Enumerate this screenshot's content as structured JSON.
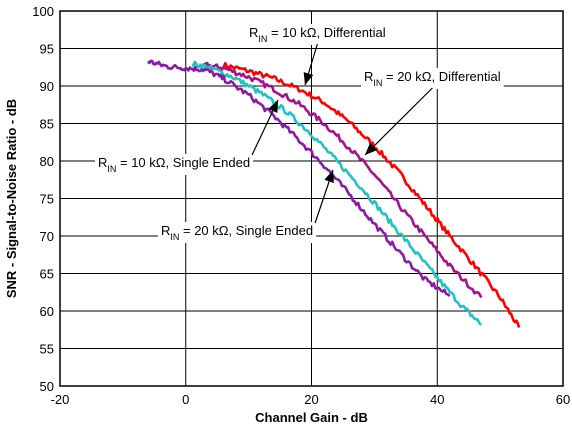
{
  "chart_data": {
    "type": "line",
    "xlabel": "Channel Gain - dB",
    "ylabel": "SNR - Signal-to-Noise Ratio - dB",
    "xlim": [
      -20,
      60
    ],
    "ylim": [
      50,
      100
    ],
    "xticks": [
      -20,
      0,
      20,
      40,
      60
    ],
    "yticks": [
      50,
      55,
      60,
      65,
      70,
      75,
      80,
      85,
      90,
      95,
      100
    ],
    "grid": true,
    "series": [
      {
        "name_parts": [
          "R",
          "IN",
          " = 10 kΩ, Differential"
        ],
        "color": "#ff0000",
        "x": [
          6,
          10,
          14,
          18,
          22,
          26,
          30,
          34,
          38,
          42,
          46,
          50,
          53
        ],
        "y": [
          92.8,
          92.0,
          91.0,
          89.6,
          87.8,
          85.2,
          82.0,
          78.4,
          74.2,
          70.0,
          66.0,
          61.8,
          57.8
        ]
      },
      {
        "name_parts": [
          "R",
          "IN",
          " = 20 kΩ, Differential"
        ],
        "color": "#a4128c",
        "x": [
          3,
          6,
          10,
          14,
          18,
          22,
          26,
          30,
          34,
          38,
          42,
          47
        ],
        "y": [
          92.8,
          92.4,
          91.2,
          89.6,
          87.6,
          85.0,
          81.8,
          78.2,
          74.0,
          70.0,
          66.0,
          61.8
        ]
      },
      {
        "name_parts": [
          "R",
          "IN",
          " = 10 kΩ, Single Ended"
        ],
        "color": "#22c2c2",
        "x": [
          1,
          4,
          8,
          12,
          16,
          20,
          24,
          28,
          32,
          36,
          40,
          44,
          47
        ],
        "y": [
          93.0,
          92.4,
          91.0,
          89.0,
          86.6,
          83.6,
          80.0,
          76.4,
          72.4,
          68.4,
          64.4,
          60.6,
          58.2
        ]
      },
      {
        "name_parts": [
          "R",
          "IN",
          " = 20 kΩ, Single Ended"
        ],
        "color": "#8a1aa8",
        "x": [
          -6,
          -3,
          0,
          3,
          6,
          10,
          14,
          18,
          22,
          26,
          30,
          34,
          38,
          42
        ],
        "y": [
          93.3,
          92.6,
          92.4,
          92.2,
          91.0,
          88.8,
          86.0,
          82.8,
          79.4,
          75.6,
          71.6,
          67.8,
          64.2,
          62.0
        ]
      }
    ],
    "annotations": [
      {
        "parts": [
          "R",
          "IN",
          " = 10 kΩ, Differential"
        ],
        "series": 0
      },
      {
        "parts": [
          "R",
          "IN",
          " = 20 kΩ, Differential"
        ],
        "series": 1
      },
      {
        "parts": [
          "R",
          "IN",
          " = 10 kΩ, Single Ended"
        ],
        "series": 2
      },
      {
        "parts": [
          "R",
          "IN",
          " = 20 kΩ, Single Ended"
        ],
        "series": 3
      }
    ]
  }
}
